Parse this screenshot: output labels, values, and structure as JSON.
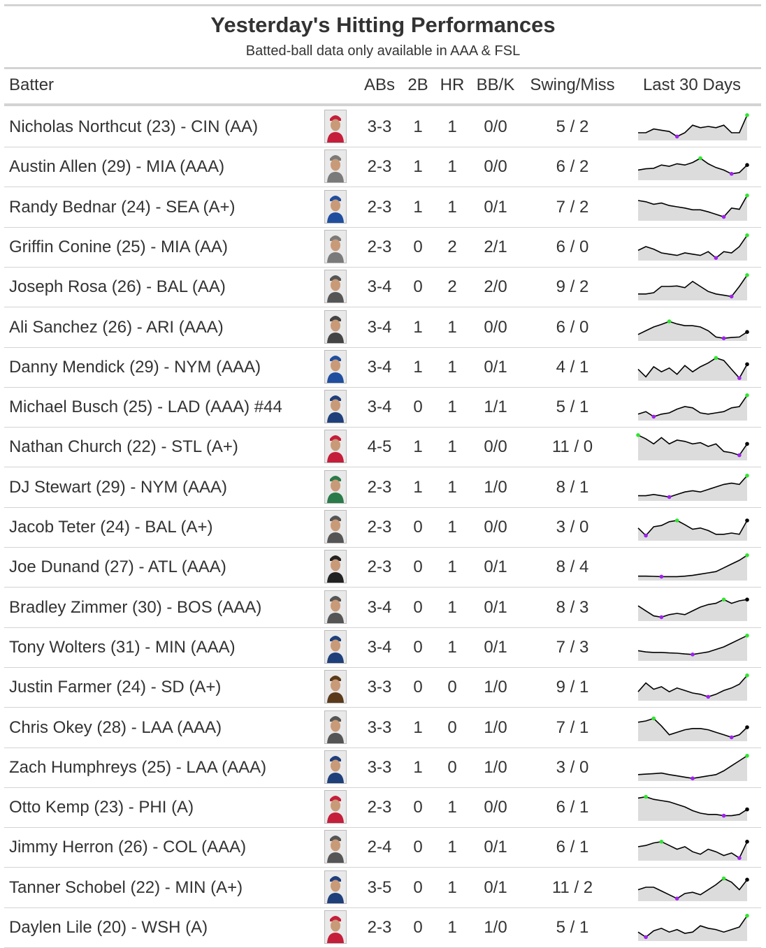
{
  "title": "Yesterday's Hitting Performances",
  "subtitle": "Batted-ball data only available in AAA & FSL",
  "columns": {
    "batter": "Batter",
    "abs": "ABs",
    "doubles": "2B",
    "hr": "HR",
    "bbk": "BB/K",
    "swing": "Swing/Miss",
    "last30": "Last 30 Days"
  },
  "colors": {
    "text": "#333333",
    "rule": "#d3d3d3",
    "spark_fill": "#dcdcdc",
    "spark_line": "#000000",
    "high_point": "#2ee62e",
    "low_point": "#a020f0"
  },
  "rows": [
    {
      "batter": "Nicholas Northcut (23) - CIN (AA)",
      "abs": "3-3",
      "doubles": "1",
      "hr": "1",
      "bbk": "0/0",
      "swing": "5 / 2",
      "jersey": "#c41e3a",
      "spark": [
        0.25,
        0.25,
        0.4,
        0.35,
        0.3,
        0.1,
        0.25,
        0.55,
        0.45,
        0.5,
        0.45,
        0.55,
        0.25,
        0.25,
        0.95
      ]
    },
    {
      "batter": "Austin Allen (29) - MIA (AAA)",
      "abs": "2-3",
      "doubles": "1",
      "hr": "1",
      "bbk": "0/0",
      "swing": "6 / 2",
      "jersey": "#7a7a7a",
      "spark": [
        0.35,
        0.4,
        0.42,
        0.55,
        0.5,
        0.6,
        0.55,
        0.65,
        0.82,
        0.6,
        0.45,
        0.35,
        0.2,
        0.25,
        0.55
      ]
    },
    {
      "batter": "Randy Bednar (24) - SEA (A+)",
      "abs": "2-3",
      "doubles": "1",
      "hr": "1",
      "bbk": "0/1",
      "swing": "7 / 2",
      "jersey": "#1f4e9e",
      "spark": [
        0.75,
        0.7,
        0.6,
        0.65,
        0.55,
        0.5,
        0.45,
        0.38,
        0.38,
        0.3,
        0.2,
        0.1,
        0.45,
        0.4,
        0.95
      ]
    },
    {
      "batter": "Griffin Conine (25) - MIA (AA)",
      "abs": "2-3",
      "doubles": "0",
      "hr": "2",
      "bbk": "2/1",
      "swing": "6 / 0",
      "jersey": "#7a7a7a",
      "spark": [
        0.35,
        0.5,
        0.4,
        0.25,
        0.2,
        0.15,
        0.25,
        0.2,
        0.15,
        0.3,
        0.05,
        0.3,
        0.25,
        0.5,
        0.95
      ]
    },
    {
      "batter": "Joseph Rosa (26) - BAL (AA)",
      "abs": "3-4",
      "doubles": "0",
      "hr": "2",
      "bbk": "2/0",
      "swing": "9 / 2",
      "jersey": "#555555",
      "spark": [
        0.2,
        0.2,
        0.25,
        0.5,
        0.5,
        0.52,
        0.45,
        0.7,
        0.5,
        0.3,
        0.2,
        0.15,
        0.1,
        0.5,
        0.95
      ]
    },
    {
      "batter": "Ali Sanchez (26) - ARI (AAA)",
      "abs": "3-4",
      "doubles": "1",
      "hr": "1",
      "bbk": "0/0",
      "swing": "6 / 0",
      "jersey": "#444444",
      "spark": [
        0.2,
        0.35,
        0.5,
        0.6,
        0.72,
        0.62,
        0.55,
        0.55,
        0.5,
        0.35,
        0.1,
        0.05,
        0.08,
        0.1,
        0.3
      ]
    },
    {
      "batter": "Danny Mendick (29) - NYM (AAA)",
      "abs": "3-4",
      "doubles": "1",
      "hr": "1",
      "bbk": "0/1",
      "swing": "4 / 1",
      "jersey": "#1f4e9e",
      "spark": [
        0.4,
        0.1,
        0.5,
        0.3,
        0.45,
        0.2,
        0.55,
        0.3,
        0.5,
        0.65,
        0.85,
        0.75,
        0.4,
        0.05,
        0.6
      ]
    },
    {
      "batter": "Michael Busch (25) - LAD (AAA) #44",
      "abs": "3-4",
      "doubles": "0",
      "hr": "1",
      "bbk": "1/1",
      "swing": "5 / 1",
      "jersey": "#1f3f7a",
      "spark": [
        0.2,
        0.3,
        0.1,
        0.2,
        0.25,
        0.4,
        0.5,
        0.45,
        0.25,
        0.2,
        0.25,
        0.3,
        0.45,
        0.5,
        0.95
      ]
    },
    {
      "batter": "Nathan Church (22) - STL (A+)",
      "abs": "4-5",
      "doubles": "1",
      "hr": "1",
      "bbk": "0/0",
      "swing": "11 / 0",
      "jersey": "#c41e3a",
      "spark": [
        0.95,
        0.8,
        0.6,
        0.85,
        0.6,
        0.75,
        0.7,
        0.6,
        0.65,
        0.5,
        0.6,
        0.3,
        0.25,
        0.15,
        0.6
      ]
    },
    {
      "batter": "DJ Stewart (29) - NYM (AAA)",
      "abs": "2-3",
      "doubles": "1",
      "hr": "1",
      "bbk": "1/0",
      "swing": "8 / 1",
      "jersey": "#2a7a4a",
      "spark": [
        0.15,
        0.15,
        0.2,
        0.15,
        0.1,
        0.2,
        0.3,
        0.35,
        0.3,
        0.4,
        0.5,
        0.6,
        0.65,
        0.6,
        0.95
      ]
    },
    {
      "batter": "Jacob Teter (24) - BAL (A+)",
      "abs": "2-3",
      "doubles": "0",
      "hr": "1",
      "bbk": "0/0",
      "swing": "3 / 0",
      "jersey": "#555555",
      "spark": [
        0.45,
        0.15,
        0.5,
        0.55,
        0.7,
        0.75,
        0.58,
        0.4,
        0.45,
        0.35,
        0.2,
        0.2,
        0.25,
        0.2,
        0.75
      ]
    },
    {
      "batter": "Joe Dunand (27) - ATL (AAA)",
      "abs": "2-3",
      "doubles": "0",
      "hr": "1",
      "bbk": "0/1",
      "swing": "8 / 4",
      "jersey": "#222222",
      "spark": [
        0.12,
        0.12,
        0.11,
        0.1,
        0.1,
        0.1,
        0.12,
        0.15,
        0.2,
        0.25,
        0.3,
        0.45,
        0.6,
        0.75,
        0.95
      ]
    },
    {
      "batter": "Bradley Zimmer (30) - BOS (AAA)",
      "abs": "3-4",
      "doubles": "0",
      "hr": "1",
      "bbk": "0/1",
      "swing": "8 / 3",
      "jersey": "#555555",
      "spark": [
        0.55,
        0.35,
        0.15,
        0.1,
        0.2,
        0.25,
        0.2,
        0.35,
        0.5,
        0.6,
        0.65,
        0.8,
        0.65,
        0.75,
        0.8
      ]
    },
    {
      "batter": "Tony Wolters (31) - MIN (AAA)",
      "abs": "3-4",
      "doubles": "0",
      "hr": "1",
      "bbk": "0/1",
      "swing": "7 / 3",
      "jersey": "#1f3f7a",
      "spark": [
        0.35,
        0.3,
        0.28,
        0.28,
        0.26,
        0.25,
        0.22,
        0.2,
        0.25,
        0.3,
        0.4,
        0.5,
        0.65,
        0.8,
        0.95
      ]
    },
    {
      "batter": "Justin Farmer (24) - SD (A+)",
      "abs": "3-3",
      "doubles": "0",
      "hr": "0",
      "bbk": "1/0",
      "swing": "9 / 1",
      "jersey": "#5a3a1a",
      "spark": [
        0.3,
        0.65,
        0.4,
        0.5,
        0.3,
        0.45,
        0.35,
        0.25,
        0.2,
        0.1,
        0.2,
        0.35,
        0.45,
        0.6,
        0.95
      ]
    },
    {
      "batter": "Chris Okey (28) - LAA (AAA)",
      "abs": "3-3",
      "doubles": "1",
      "hr": "0",
      "bbk": "1/0",
      "swing": "7 / 1",
      "jersey": "#555555",
      "spark": [
        0.7,
        0.75,
        0.85,
        0.55,
        0.2,
        0.3,
        0.4,
        0.45,
        0.45,
        0.4,
        0.3,
        0.2,
        0.1,
        0.2,
        0.5
      ]
    },
    {
      "batter": "Zach Humphreys (25) - LAA (AAA)",
      "abs": "3-3",
      "doubles": "1",
      "hr": "0",
      "bbk": "1/0",
      "swing": "3 / 0",
      "jersey": "#1f3f7a",
      "spark": [
        0.2,
        0.22,
        0.24,
        0.26,
        0.2,
        0.15,
        0.1,
        0.05,
        0.1,
        0.15,
        0.2,
        0.35,
        0.55,
        0.75,
        0.95
      ]
    },
    {
      "batter": "Otto Kemp (23) - PHI (A)",
      "abs": "2-3",
      "doubles": "0",
      "hr": "1",
      "bbk": "0/0",
      "swing": "6 / 1",
      "jersey": "#c41e3a",
      "spark": [
        0.85,
        0.9,
        0.8,
        0.75,
        0.7,
        0.6,
        0.5,
        0.35,
        0.25,
        0.2,
        0.2,
        0.15,
        0.15,
        0.2,
        0.4
      ]
    },
    {
      "batter": "Jimmy Herron (26) - COL (AAA)",
      "abs": "2-4",
      "doubles": "0",
      "hr": "1",
      "bbk": "0/1",
      "swing": "6 / 1",
      "jersey": "#555555",
      "spark": [
        0.5,
        0.55,
        0.65,
        0.7,
        0.55,
        0.4,
        0.5,
        0.3,
        0.2,
        0.4,
        0.3,
        0.15,
        0.25,
        0.05,
        0.7
      ]
    },
    {
      "batter": "Tanner Schobel (22) - MIN (A+)",
      "abs": "3-5",
      "doubles": "0",
      "hr": "1",
      "bbk": "0/1",
      "swing": "11 / 2",
      "jersey": "#1f3f7a",
      "spark": [
        0.4,
        0.5,
        0.5,
        0.35,
        0.2,
        0.05,
        0.25,
        0.3,
        0.2,
        0.4,
        0.6,
        0.85,
        0.7,
        0.4,
        0.8
      ]
    },
    {
      "batter": "Daylen Lile (20) - WSH (A)",
      "abs": "2-3",
      "doubles": "0",
      "hr": "1",
      "bbk": "1/0",
      "swing": "5 / 1",
      "jersey": "#c41e3a",
      "spark": [
        0.3,
        0.1,
        0.35,
        0.45,
        0.3,
        0.4,
        0.25,
        0.3,
        0.55,
        0.45,
        0.4,
        0.3,
        0.4,
        0.5,
        0.95
      ]
    }
  ]
}
